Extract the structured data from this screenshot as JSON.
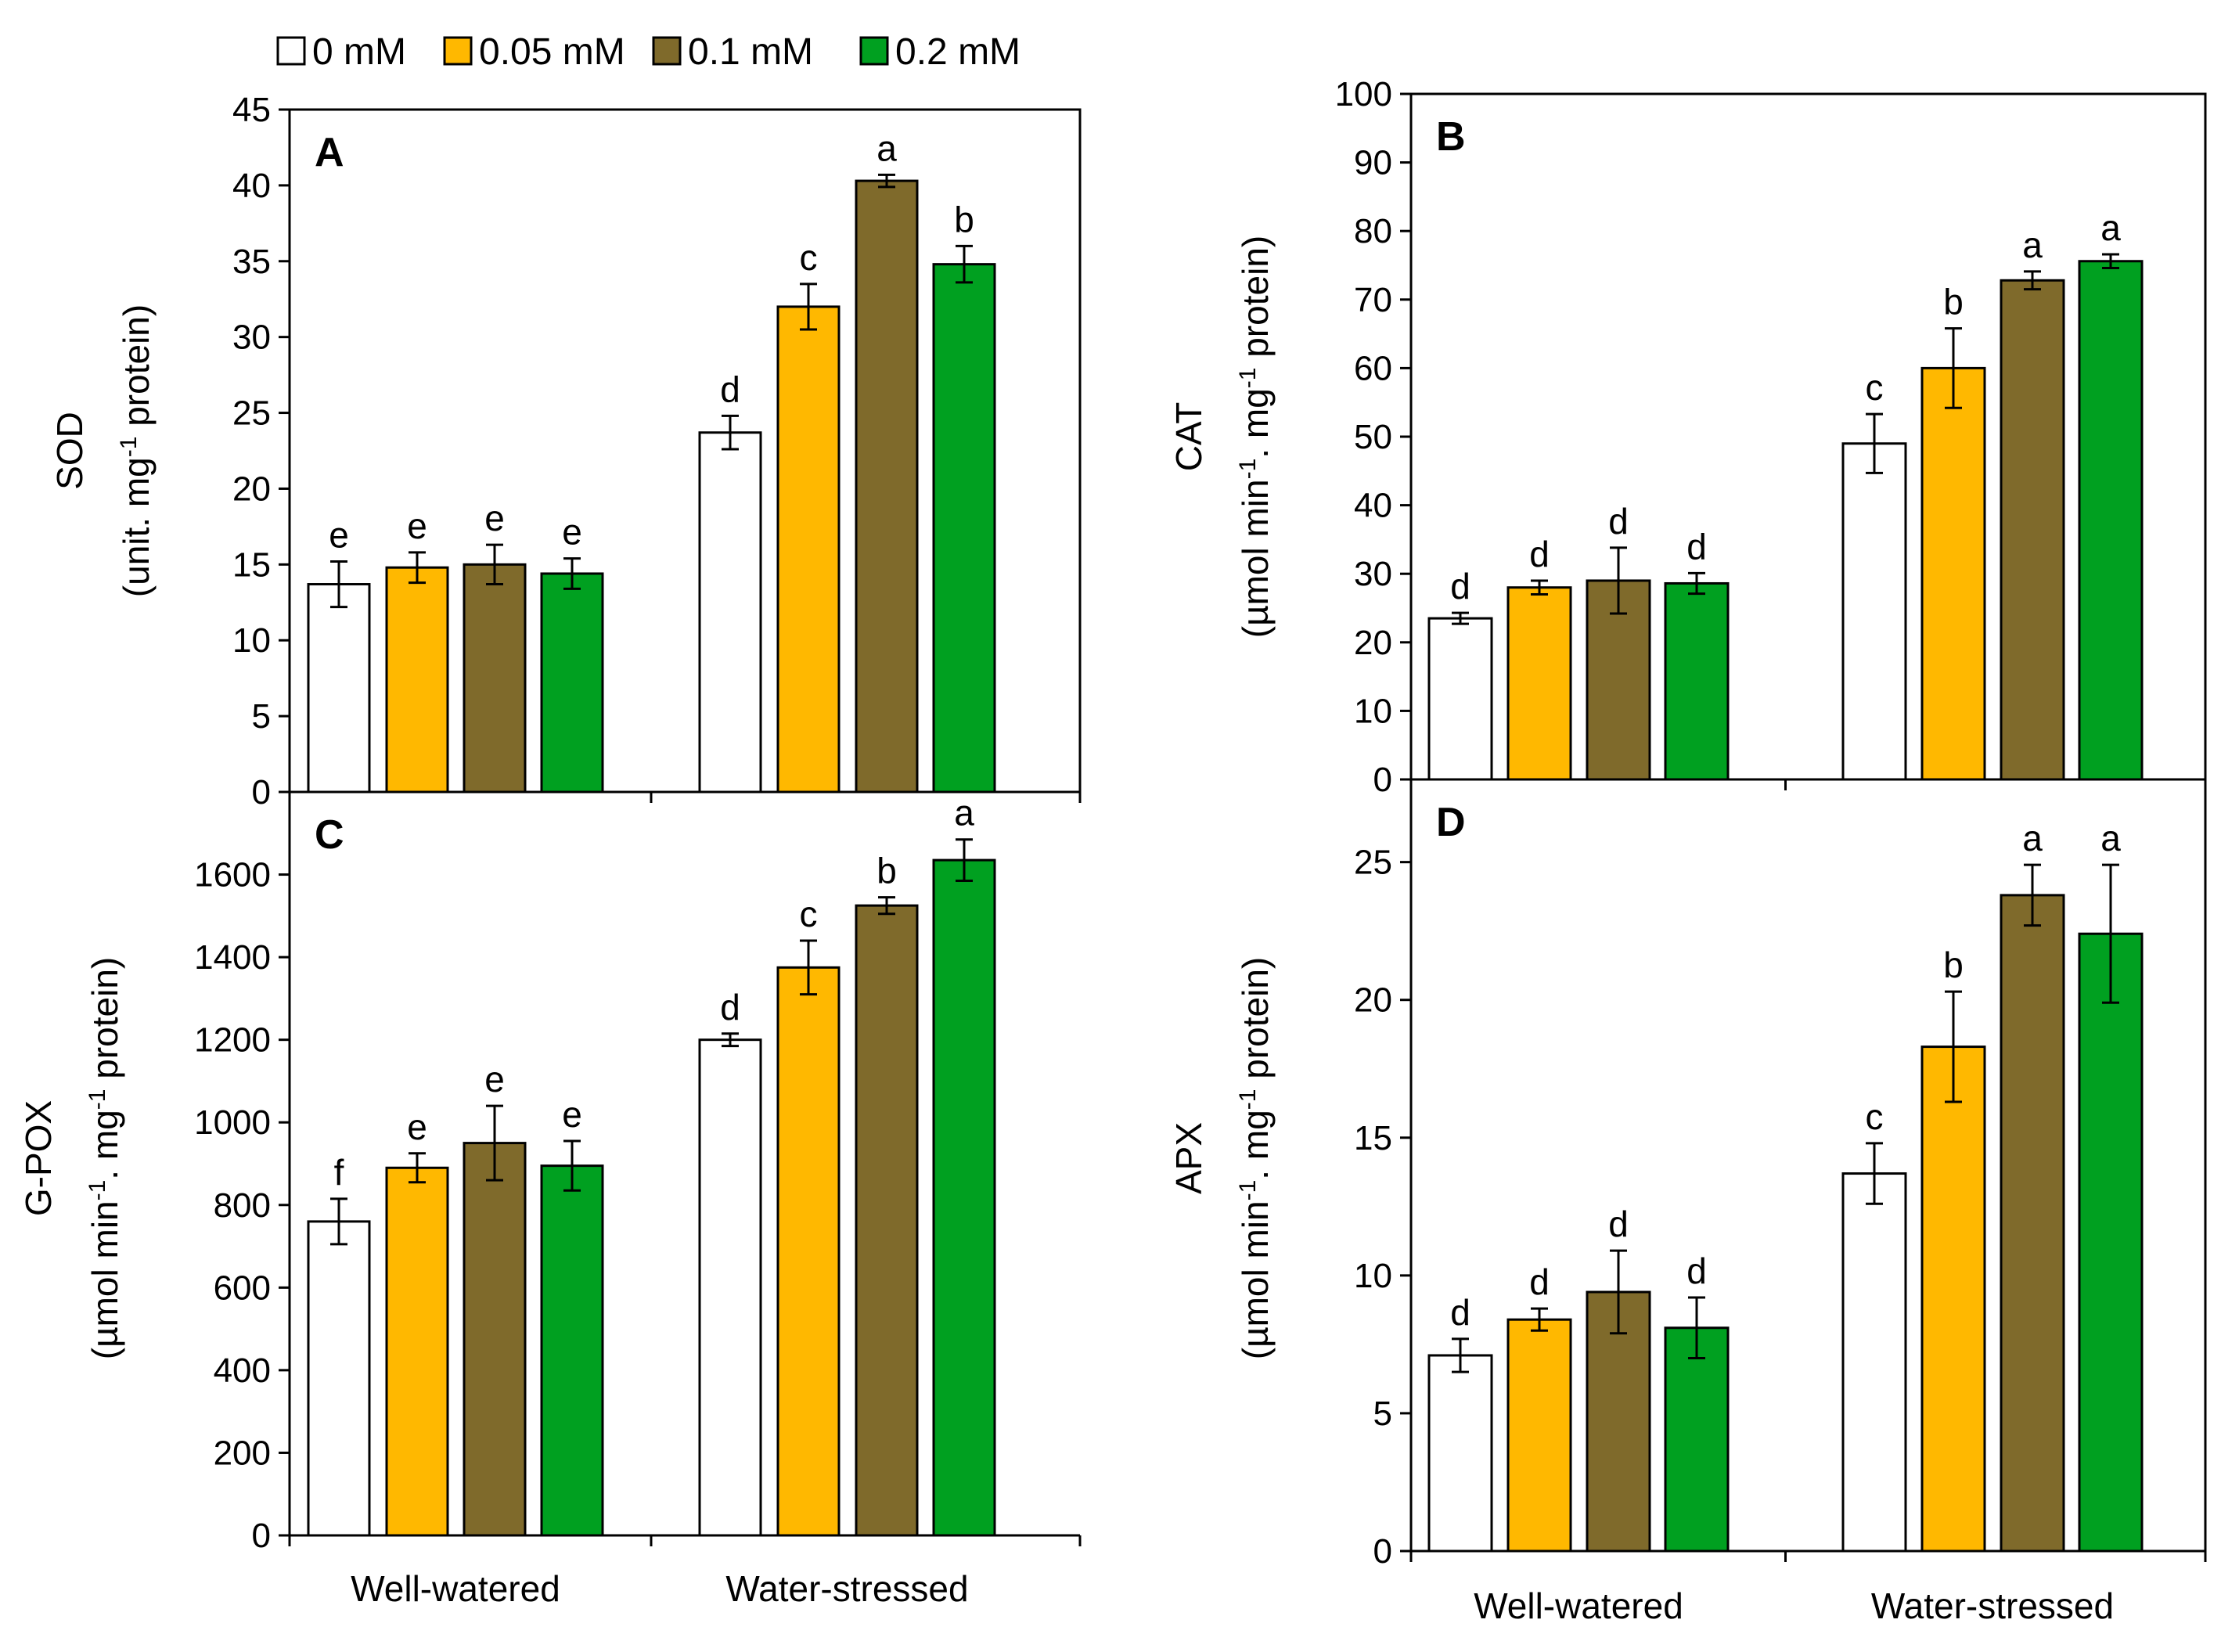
{
  "legend": {
    "entries": [
      {
        "label": "0 mM",
        "color": "#ffffff"
      },
      {
        "label": "0.05 mM",
        "color": "#ffb800"
      },
      {
        "label": "0.1 mM",
        "color": "#7f6a2b"
      },
      {
        "label": "0.2 mM",
        "color": "#00a020"
      }
    ]
  },
  "chart_data": [
    {
      "type": "bar",
      "panel": "A",
      "ylabel_line1": "SOD",
      "ylabel_line2_prefix": "(unit. mg",
      "ylabel_line2_sup": "-1",
      "ylabel_line2_suffix": " protein)",
      "ylim": [
        0,
        45
      ],
      "yticks": [
        "0",
        "5",
        "10",
        "15",
        "20",
        "25",
        "30",
        "35",
        "40",
        "45"
      ],
      "categories": [
        "Well-watered",
        "Water-stressed"
      ],
      "series": [
        {
          "name": "0 mM",
          "values": [
            13.7,
            23.7
          ],
          "errors": [
            1.5,
            1.1
          ],
          "letters": [
            "e",
            "d"
          ]
        },
        {
          "name": "0.05 mM",
          "values": [
            14.8,
            32.0
          ],
          "errors": [
            1.0,
            1.5
          ],
          "letters": [
            "e",
            "c"
          ]
        },
        {
          "name": "0.1 mM",
          "values": [
            15.0,
            40.3
          ],
          "errors": [
            1.3,
            0.4
          ],
          "letters": [
            "e",
            "a"
          ]
        },
        {
          "name": "0.2 mM",
          "values": [
            14.4,
            34.8
          ],
          "errors": [
            1.0,
            1.2
          ],
          "letters": [
            "e",
            "b"
          ]
        }
      ]
    },
    {
      "type": "bar",
      "panel": "B",
      "ylabel_line1": "CAT",
      "ylabel_line2_prefix": "(µmol min",
      "ylabel_line2_sup": "-1",
      "ylabel_line2_mid": ". mg",
      "ylabel_line2_sup2": "-1",
      "ylabel_line2_suffix": " protein)",
      "ylim": [
        0,
        100
      ],
      "yticks": [
        "0",
        "10",
        "20",
        "30",
        "40",
        "50",
        "60",
        "70",
        "80",
        "90",
        "100"
      ],
      "categories": [
        "Well-watered",
        "Water-stressed"
      ],
      "series": [
        {
          "name": "0 mM",
          "values": [
            23.5,
            49.0
          ],
          "errors": [
            0.8,
            4.3
          ],
          "letters": [
            "d",
            "c"
          ]
        },
        {
          "name": "0.05 mM",
          "values": [
            28.0,
            60.0
          ],
          "errors": [
            1.0,
            5.8
          ],
          "letters": [
            "d",
            "b"
          ]
        },
        {
          "name": "0.1 mM",
          "values": [
            29.0,
            72.8
          ],
          "errors": [
            4.8,
            1.3
          ],
          "letters": [
            "d",
            "a"
          ]
        },
        {
          "name": "0.2 mM",
          "values": [
            28.6,
            75.6
          ],
          "errors": [
            1.5,
            1.0
          ],
          "letters": [
            "d",
            "a"
          ]
        }
      ]
    },
    {
      "type": "bar",
      "panel": "C",
      "ylabel_line1": "G-POX",
      "ylabel_line2_prefix": "(µmol min",
      "ylabel_line2_sup": "-1",
      "ylabel_line2_mid": ". mg",
      "ylabel_line2_sup2": "-1",
      "ylabel_line2_suffix": " protein)",
      "ylim": [
        0,
        1800
      ],
      "yticks": [
        "0",
        "200",
        "400",
        "600",
        "800",
        "1000",
        "1200",
        "1400",
        "1600"
      ],
      "categories": [
        "Well-watered",
        "Water-stressed"
      ],
      "series": [
        {
          "name": "0 mM",
          "values": [
            760,
            1200
          ],
          "errors": [
            55,
            15
          ],
          "letters": [
            "f",
            "d"
          ]
        },
        {
          "name": "0.05 mM",
          "values": [
            890,
            1375
          ],
          "errors": [
            35,
            65
          ],
          "letters": [
            "e",
            "c"
          ]
        },
        {
          "name": "0.1 mM",
          "values": [
            950,
            1525
          ],
          "errors": [
            90,
            20
          ],
          "letters": [
            "e",
            "b"
          ]
        },
        {
          "name": "0.2 mM",
          "values": [
            895,
            1635
          ],
          "errors": [
            60,
            50
          ],
          "letters": [
            "e",
            "a"
          ]
        }
      ]
    },
    {
      "type": "bar",
      "panel": "D",
      "ylabel_line1": "APX",
      "ylabel_line2_prefix": "(µmol min",
      "ylabel_line2_sup": "-1",
      "ylabel_line2_mid": ". mg",
      "ylabel_line2_sup2": "-1",
      "ylabel_line2_suffix": " protein)",
      "ylim": [
        0,
        28
      ],
      "yticks": [
        "0",
        "5",
        "10",
        "15",
        "20",
        "25"
      ],
      "categories": [
        "Well-watered",
        "Water-stressed"
      ],
      "series": [
        {
          "name": "0 mM",
          "values": [
            7.1,
            13.7
          ],
          "errors": [
            0.6,
            1.1
          ],
          "letters": [
            "d",
            "c"
          ]
        },
        {
          "name": "0.05 mM",
          "values": [
            8.4,
            18.3
          ],
          "errors": [
            0.4,
            2.0
          ],
          "letters": [
            "d",
            "b"
          ]
        },
        {
          "name": "0.1 mM",
          "values": [
            9.4,
            23.8
          ],
          "errors": [
            1.5,
            1.1
          ],
          "letters": [
            "d",
            "a"
          ]
        },
        {
          "name": "0.2 mM",
          "values": [
            8.1,
            22.4
          ],
          "errors": [
            1.1,
            2.5
          ],
          "letters": [
            "d",
            "a"
          ]
        }
      ]
    }
  ]
}
